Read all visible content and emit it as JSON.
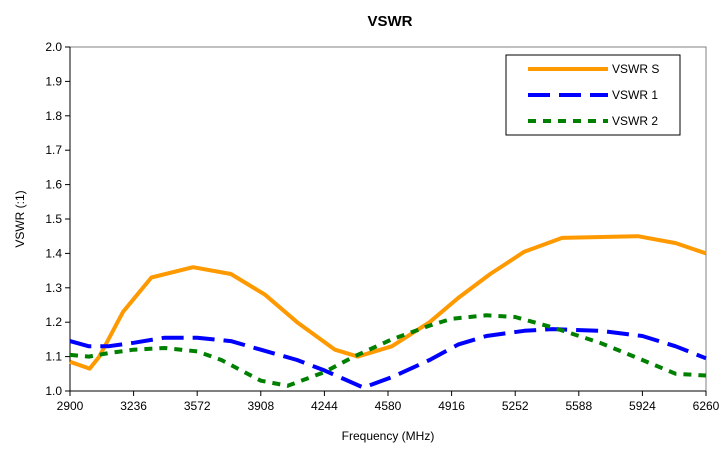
{
  "chart_data": {
    "type": "line",
    "title": "VSWR",
    "xlabel": "Frequency (MHz)",
    "ylabel": "VSWR (:1)",
    "xlim": [
      2900,
      6260
    ],
    "ylim": [
      1.0,
      2.0
    ],
    "xticks": [
      2900,
      3236,
      3572,
      3908,
      4244,
      4580,
      4916,
      5252,
      5588,
      5924,
      6260
    ],
    "yticks": [
      "1.0",
      "1.1",
      "1.2",
      "1.3",
      "1.4",
      "1.5",
      "1.6",
      "1.7",
      "1.8",
      "1.9",
      "2.0"
    ],
    "grid": false,
    "legend": "top-right",
    "series": [
      {
        "name": "VSWR S",
        "color": "#FF9900",
        "style": "solid",
        "x": [
          2900,
          3004,
          3055,
          3180,
          3330,
          3550,
          3750,
          3930,
          4100,
          4300,
          4420,
          4600,
          4800,
          4950,
          5120,
          5300,
          5500,
          5900,
          6100,
          6260
        ],
        "y": [
          1.085,
          1.065,
          1.1,
          1.23,
          1.33,
          1.36,
          1.34,
          1.28,
          1.2,
          1.12,
          1.1,
          1.13,
          1.2,
          1.27,
          1.34,
          1.405,
          1.445,
          1.45,
          1.43,
          1.4
        ]
      },
      {
        "name": "VSWR 1",
        "color": "#0000FF",
        "style": "dash",
        "x": [
          2900,
          3000,
          3100,
          3236,
          3400,
          3572,
          3750,
          3908,
          4100,
          4244,
          4450,
          4600,
          4800,
          4950,
          5100,
          5300,
          5450,
          5700,
          5924,
          6100,
          6260
        ],
        "y": [
          1.145,
          1.13,
          1.13,
          1.14,
          1.155,
          1.155,
          1.145,
          1.12,
          1.09,
          1.06,
          1.01,
          1.04,
          1.09,
          1.135,
          1.16,
          1.175,
          1.18,
          1.175,
          1.16,
          1.13,
          1.095
        ]
      },
      {
        "name": "VSWR 2",
        "color": "#008000",
        "style": "dot",
        "x": [
          2900,
          3000,
          3100,
          3236,
          3400,
          3572,
          3700,
          3908,
          4050,
          4244,
          4400,
          4600,
          4800,
          4916,
          5100,
          5252,
          5450,
          5700,
          5924,
          6100,
          6260
        ],
        "y": [
          1.105,
          1.1,
          1.11,
          1.12,
          1.125,
          1.115,
          1.09,
          1.03,
          1.015,
          1.055,
          1.1,
          1.15,
          1.19,
          1.21,
          1.22,
          1.215,
          1.185,
          1.14,
          1.09,
          1.05,
          1.045
        ]
      }
    ]
  }
}
